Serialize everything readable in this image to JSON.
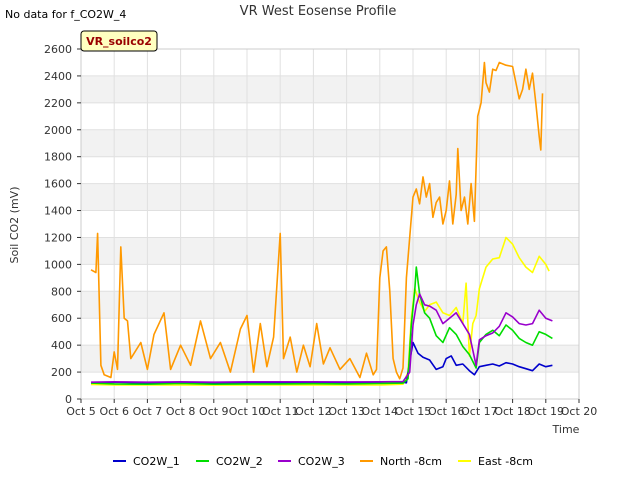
{
  "chart_data": {
    "type": "line",
    "title": "VR West Eosense Profile",
    "note": "No data for f_CO2W_4",
    "site_label": "VR_soilco2",
    "xlabel": "Time",
    "ylabel": "Soil CO2 (mV)",
    "xlim": [
      5,
      20
    ],
    "ylim": [
      0,
      2600
    ],
    "x_ticks": [
      5,
      6,
      7,
      8,
      9,
      10,
      11,
      12,
      13,
      14,
      15,
      16,
      17,
      18,
      19,
      20
    ],
    "x_tick_labels": [
      "Oct 5",
      "Oct 6",
      "Oct 7",
      "Oct 8",
      "Oct 9",
      "Oct 10",
      "Oct 11",
      "Oct 12",
      "Oct 13",
      "Oct 14",
      "Oct 15",
      "Oct 16",
      "Oct 17",
      "Oct 18",
      "Oct 19",
      "Oct 20"
    ],
    "y_ticks": [
      0,
      200,
      400,
      600,
      800,
      1000,
      1200,
      1400,
      1600,
      1800,
      2000,
      2200,
      2400,
      2600
    ],
    "grid": true,
    "legend_position": "bottom",
    "series": [
      {
        "name": "CO2W_1",
        "color": "#0000cc",
        "points": [
          [
            5.3,
            120
          ],
          [
            6,
            125
          ],
          [
            7,
            118
          ],
          [
            8,
            122
          ],
          [
            9,
            118
          ],
          [
            10,
            120
          ],
          [
            11,
            118
          ],
          [
            12,
            120
          ],
          [
            13,
            118
          ],
          [
            14,
            120
          ],
          [
            14.7,
            125
          ],
          [
            14.8,
            120
          ],
          [
            14.9,
            280
          ],
          [
            15.0,
            420
          ],
          [
            15.15,
            340
          ],
          [
            15.3,
            310
          ],
          [
            15.5,
            290
          ],
          [
            15.7,
            220
          ],
          [
            15.9,
            240
          ],
          [
            16.0,
            300
          ],
          [
            16.15,
            320
          ],
          [
            16.3,
            250
          ],
          [
            16.5,
            260
          ],
          [
            16.7,
            210
          ],
          [
            16.85,
            180
          ],
          [
            17.0,
            240
          ],
          [
            17.2,
            250
          ],
          [
            17.4,
            260
          ],
          [
            17.6,
            245
          ],
          [
            17.8,
            270
          ],
          [
            18.0,
            260
          ],
          [
            18.2,
            240
          ],
          [
            18.4,
            225
          ],
          [
            18.6,
            210
          ],
          [
            18.8,
            260
          ],
          [
            19.0,
            240
          ],
          [
            19.2,
            250
          ]
        ]
      },
      {
        "name": "CO2W_2",
        "color": "#00dd00",
        "points": [
          [
            5.3,
            118
          ],
          [
            6,
            112
          ],
          [
            7,
            110
          ],
          [
            8,
            115
          ],
          [
            9,
            110
          ],
          [
            10,
            112
          ],
          [
            11,
            112
          ],
          [
            12,
            114
          ],
          [
            13,
            112
          ],
          [
            14,
            115
          ],
          [
            14.7,
            118
          ],
          [
            14.85,
            150
          ],
          [
            14.95,
            550
          ],
          [
            15.05,
            800
          ],
          [
            15.1,
            980
          ],
          [
            15.2,
            780
          ],
          [
            15.35,
            640
          ],
          [
            15.5,
            600
          ],
          [
            15.7,
            470
          ],
          [
            15.9,
            420
          ],
          [
            16.1,
            530
          ],
          [
            16.3,
            480
          ],
          [
            16.5,
            390
          ],
          [
            16.7,
            330
          ],
          [
            16.9,
            230
          ],
          [
            17.0,
            420
          ],
          [
            17.2,
            480
          ],
          [
            17.4,
            510
          ],
          [
            17.6,
            470
          ],
          [
            17.8,
            550
          ],
          [
            18.0,
            510
          ],
          [
            18.2,
            450
          ],
          [
            18.4,
            420
          ],
          [
            18.6,
            400
          ],
          [
            18.8,
            500
          ],
          [
            19.0,
            480
          ],
          [
            19.2,
            450
          ]
        ]
      },
      {
        "name": "CO2W_3",
        "color": "#9900cc",
        "points": [
          [
            5.3,
            125
          ],
          [
            6,
            128
          ],
          [
            7,
            125
          ],
          [
            8,
            128
          ],
          [
            9,
            125
          ],
          [
            10,
            128
          ],
          [
            11,
            128
          ],
          [
            12,
            128
          ],
          [
            13,
            127
          ],
          [
            14,
            128
          ],
          [
            14.7,
            130
          ],
          [
            14.9,
            200
          ],
          [
            15.0,
            550
          ],
          [
            15.1,
            700
          ],
          [
            15.2,
            780
          ],
          [
            15.35,
            700
          ],
          [
            15.5,
            690
          ],
          [
            15.7,
            660
          ],
          [
            15.9,
            560
          ],
          [
            16.1,
            600
          ],
          [
            16.3,
            640
          ],
          [
            16.5,
            560
          ],
          [
            16.7,
            480
          ],
          [
            16.9,
            250
          ],
          [
            17.0,
            440
          ],
          [
            17.2,
            470
          ],
          [
            17.4,
            490
          ],
          [
            17.6,
            540
          ],
          [
            17.8,
            640
          ],
          [
            18.0,
            610
          ],
          [
            18.2,
            560
          ],
          [
            18.4,
            550
          ],
          [
            18.6,
            560
          ],
          [
            18.8,
            660
          ],
          [
            19.0,
            600
          ],
          [
            19.2,
            580
          ]
        ]
      },
      {
        "name": "North -8cm",
        "color": "#ff9900",
        "points": [
          [
            5.3,
            960
          ],
          [
            5.45,
            940
          ],
          [
            5.5,
            1230
          ],
          [
            5.6,
            250
          ],
          [
            5.7,
            180
          ],
          [
            5.9,
            160
          ],
          [
            6.0,
            350
          ],
          [
            6.1,
            220
          ],
          [
            6.2,
            1130
          ],
          [
            6.3,
            600
          ],
          [
            6.4,
            580
          ],
          [
            6.5,
            300
          ],
          [
            6.8,
            420
          ],
          [
            7.0,
            220
          ],
          [
            7.2,
            480
          ],
          [
            7.5,
            640
          ],
          [
            7.7,
            220
          ],
          [
            8.0,
            400
          ],
          [
            8.3,
            250
          ],
          [
            8.6,
            580
          ],
          [
            8.9,
            300
          ],
          [
            9.2,
            420
          ],
          [
            9.5,
            200
          ],
          [
            9.8,
            520
          ],
          [
            10.0,
            620
          ],
          [
            10.2,
            200
          ],
          [
            10.4,
            560
          ],
          [
            10.6,
            240
          ],
          [
            10.8,
            460
          ],
          [
            11.0,
            1230
          ],
          [
            11.1,
            300
          ],
          [
            11.3,
            460
          ],
          [
            11.5,
            200
          ],
          [
            11.7,
            400
          ],
          [
            11.9,
            240
          ],
          [
            12.1,
            560
          ],
          [
            12.3,
            260
          ],
          [
            12.5,
            380
          ],
          [
            12.8,
            220
          ],
          [
            13.1,
            300
          ],
          [
            13.4,
            160
          ],
          [
            13.6,
            340
          ],
          [
            13.8,
            180
          ],
          [
            13.9,
            220
          ],
          [
            14.0,
            900
          ],
          [
            14.1,
            1100
          ],
          [
            14.2,
            1130
          ],
          [
            14.3,
            800
          ],
          [
            14.4,
            300
          ],
          [
            14.5,
            200
          ],
          [
            14.6,
            150
          ],
          [
            14.7,
            230
          ],
          [
            14.8,
            900
          ],
          [
            14.9,
            1200
          ],
          [
            15.0,
            1500
          ],
          [
            15.1,
            1560
          ],
          [
            15.2,
            1450
          ],
          [
            15.3,
            1650
          ],
          [
            15.4,
            1500
          ],
          [
            15.5,
            1600
          ],
          [
            15.6,
            1350
          ],
          [
            15.7,
            1460
          ],
          [
            15.8,
            1500
          ],
          [
            15.9,
            1300
          ],
          [
            16.0,
            1400
          ],
          [
            16.1,
            1620
          ],
          [
            16.2,
            1300
          ],
          [
            16.3,
            1520
          ],
          [
            16.35,
            1860
          ],
          [
            16.45,
            1400
          ],
          [
            16.55,
            1500
          ],
          [
            16.65,
            1300
          ],
          [
            16.75,
            1600
          ],
          [
            16.85,
            1320
          ],
          [
            16.95,
            2100
          ],
          [
            17.05,
            2200
          ],
          [
            17.15,
            2500
          ],
          [
            17.2,
            2350
          ],
          [
            17.3,
            2280
          ],
          [
            17.4,
            2450
          ],
          [
            17.5,
            2440
          ],
          [
            17.6,
            2500
          ],
          [
            17.8,
            2480
          ],
          [
            18.0,
            2470
          ],
          [
            18.2,
            2230
          ],
          [
            18.3,
            2300
          ],
          [
            18.4,
            2450
          ],
          [
            18.5,
            2300
          ],
          [
            18.6,
            2420
          ],
          [
            18.7,
            2200
          ],
          [
            18.8,
            1950
          ],
          [
            18.85,
            1850
          ],
          [
            18.9,
            2270
          ]
        ]
      },
      {
        "name": "East -8cm",
        "color": "#ffff00",
        "points": [
          [
            5.3,
            108
          ],
          [
            6,
            105
          ],
          [
            7,
            104
          ],
          [
            8,
            104
          ],
          [
            9,
            103
          ],
          [
            10,
            104
          ],
          [
            11,
            104
          ],
          [
            12,
            104
          ],
          [
            13,
            104
          ],
          [
            14,
            104
          ],
          [
            14.7,
            110
          ],
          [
            14.85,
            200
          ],
          [
            14.95,
            600
          ],
          [
            15.05,
            820
          ],
          [
            15.2,
            720
          ],
          [
            15.35,
            650
          ],
          [
            15.5,
            700
          ],
          [
            15.7,
            720
          ],
          [
            15.9,
            640
          ],
          [
            16.1,
            620
          ],
          [
            16.3,
            680
          ],
          [
            16.5,
            560
          ],
          [
            16.6,
            860
          ],
          [
            16.7,
            320
          ],
          [
            16.8,
            560
          ],
          [
            16.9,
            620
          ],
          [
            17.0,
            820
          ],
          [
            17.2,
            980
          ],
          [
            17.4,
            1040
          ],
          [
            17.6,
            1050
          ],
          [
            17.8,
            1200
          ],
          [
            18.0,
            1150
          ],
          [
            18.2,
            1050
          ],
          [
            18.4,
            980
          ],
          [
            18.6,
            940
          ],
          [
            18.8,
            1060
          ],
          [
            19.0,
            1000
          ],
          [
            19.1,
            950
          ]
        ]
      }
    ]
  }
}
